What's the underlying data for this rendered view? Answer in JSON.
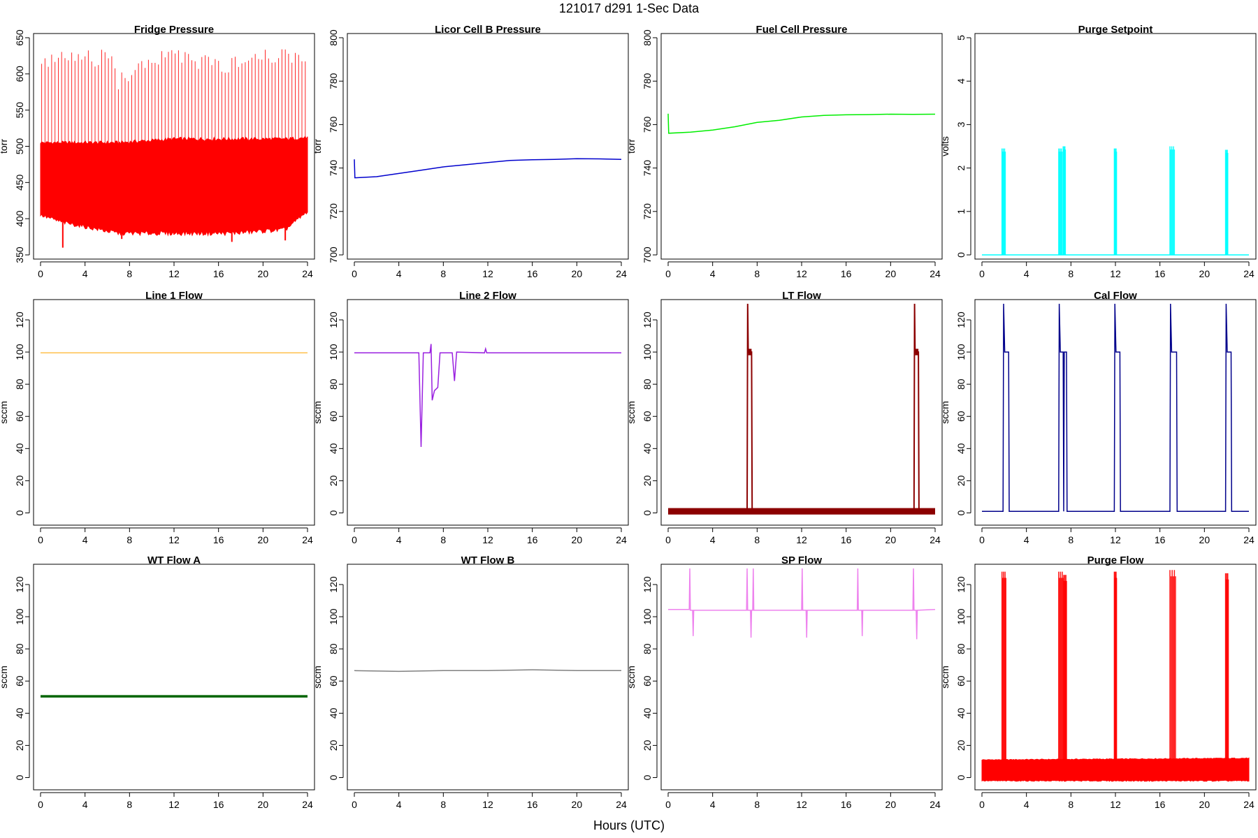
{
  "figure": {
    "suptitle": "121017   d291   1-Sec Data",
    "xlabel": "Hours (UTC)"
  },
  "chart_data": [
    {
      "type": "line",
      "title": "Fridge Pressure",
      "ylabel": "torr",
      "color": "#ff0000",
      "xlim": [
        0,
        24
      ],
      "ylim": [
        350,
        650
      ],
      "xticks": [
        0,
        4,
        8,
        12,
        16,
        20,
        24
      ],
      "yticks": [
        350,
        400,
        450,
        500,
        550,
        600,
        650
      ],
      "band": [
        [
          0,
          405,
          505
        ],
        [
          2,
          395,
          505
        ],
        [
          7,
          380,
          505
        ],
        [
          12,
          380,
          510
        ],
        [
          17,
          380,
          510
        ],
        [
          22,
          385,
          510
        ],
        [
          24,
          410,
          512
        ]
      ],
      "spikes": {
        "start": 0.1,
        "end": 24,
        "step": 0.3,
        "from": 505,
        "tops": [
          [
            0,
            630
          ],
          [
            6.6,
            635
          ],
          [
            7,
            600
          ],
          [
            8,
            610
          ],
          [
            12,
            640
          ],
          [
            17,
            620
          ],
          [
            18,
            635
          ],
          [
            24,
            640
          ]
        ]
      },
      "dips": [
        [
          2,
          360
        ],
        [
          7.3,
          372
        ],
        [
          12,
          378
        ],
        [
          17.2,
          368
        ],
        [
          22,
          370
        ]
      ]
    },
    {
      "type": "line",
      "title": "Licor Cell B Pressure",
      "ylabel": "torr",
      "color": "#0000cd",
      "xlim": [
        0,
        24
      ],
      "ylim": [
        700,
        800
      ],
      "xticks": [
        0,
        4,
        8,
        12,
        16,
        20,
        24
      ],
      "yticks": [
        700,
        720,
        740,
        760,
        780,
        800
      ],
      "series": [
        [
          0,
          744
        ],
        [
          0.05,
          735.5
        ],
        [
          2,
          736
        ],
        [
          4,
          737.5
        ],
        [
          6,
          739
        ],
        [
          8,
          740.5
        ],
        [
          10,
          741.5
        ],
        [
          12,
          742.5
        ],
        [
          14,
          743.5
        ],
        [
          16,
          743.8
        ],
        [
          18,
          744
        ],
        [
          20,
          744.3
        ],
        [
          22,
          744.2
        ],
        [
          24,
          744
        ]
      ]
    },
    {
      "type": "line",
      "title": "Fuel Cell Pressure",
      "ylabel": "torr",
      "color": "#00ee00",
      "xlim": [
        0,
        24
      ],
      "ylim": [
        700,
        800
      ],
      "xticks": [
        0,
        4,
        8,
        12,
        16,
        20,
        24
      ],
      "yticks": [
        700,
        720,
        740,
        760,
        780,
        800
      ],
      "series": [
        [
          0,
          765
        ],
        [
          0.05,
          756
        ],
        [
          2,
          756.5
        ],
        [
          4,
          757.5
        ],
        [
          6,
          759
        ],
        [
          8,
          761
        ],
        [
          10,
          762
        ],
        [
          12,
          763.5
        ],
        [
          14,
          764.2
        ],
        [
          16,
          764.5
        ],
        [
          18,
          764.6
        ],
        [
          20,
          764.8
        ],
        [
          22,
          764.7
        ],
        [
          24,
          764.8
        ]
      ]
    },
    {
      "type": "line",
      "title": "Purge Setpoint",
      "ylabel": "volts",
      "color": "#00ffff",
      "xlim": [
        0,
        24
      ],
      "ylim": [
        0,
        5
      ],
      "xticks": [
        0,
        4,
        8,
        12,
        16,
        20,
        24
      ],
      "yticks": [
        0,
        1,
        2,
        3,
        4,
        5
      ],
      "baseline": 0,
      "pulses": [
        [
          1.8,
          2.1,
          2.45
        ],
        [
          6.9,
          7.2,
          2.45
        ],
        [
          7.3,
          7.5,
          2.5
        ],
        [
          11.9,
          12.1,
          2.45
        ],
        [
          16.9,
          17.3,
          2.5
        ],
        [
          21.9,
          22.1,
          2.42
        ]
      ]
    },
    {
      "type": "line",
      "title": "Line 1 Flow",
      "ylabel": "sccm",
      "color": "#ffc04c",
      "xlim": [
        0,
        24
      ],
      "ylim": [
        -5,
        130
      ],
      "xticks": [
        0,
        4,
        8,
        12,
        16,
        20,
        24
      ],
      "yticks": [
        0,
        20,
        40,
        60,
        80,
        100,
        120
      ],
      "series": [
        [
          0,
          99.5
        ],
        [
          24,
          99.5
        ]
      ]
    },
    {
      "type": "line",
      "title": "Line 2 Flow",
      "ylabel": "sccm",
      "color": "#9a20e0",
      "xlim": [
        0,
        24
      ],
      "ylim": [
        -5,
        130
      ],
      "xticks": [
        0,
        4,
        8,
        12,
        16,
        20,
        24
      ],
      "yticks": [
        0,
        20,
        40,
        60,
        80,
        100,
        120
      ],
      "series": [
        [
          0,
          99.5
        ],
        [
          5.8,
          99.5
        ],
        [
          6,
          41
        ],
        [
          6.2,
          99.5
        ],
        [
          6.8,
          99.5
        ],
        [
          6.9,
          105
        ],
        [
          7,
          70
        ],
        [
          7.2,
          76
        ],
        [
          7.5,
          78
        ],
        [
          7.7,
          99.5
        ],
        [
          8.8,
          99.5
        ],
        [
          9,
          82
        ],
        [
          9.2,
          100
        ],
        [
          11.7,
          99.5
        ],
        [
          11.8,
          102
        ],
        [
          11.9,
          99.5
        ],
        [
          24,
          99.5
        ]
      ]
    },
    {
      "type": "line",
      "title": "LT Flow",
      "ylabel": "sccm",
      "color": "#8b0000",
      "xlim": [
        0,
        24
      ],
      "ylim": [
        -5,
        130
      ],
      "xticks": [
        0,
        4,
        8,
        12,
        16,
        20,
        24
      ],
      "yticks": [
        0,
        20,
        40,
        60,
        80,
        100,
        120
      ],
      "series": [
        [
          0,
          1
        ],
        [
          7.1,
          1
        ],
        [
          7.15,
          130
        ],
        [
          7.2,
          100
        ],
        [
          7.5,
          100
        ],
        [
          7.55,
          1
        ],
        [
          22.1,
          1
        ],
        [
          22.15,
          130
        ],
        [
          22.2,
          100
        ],
        [
          22.5,
          100
        ],
        [
          22.55,
          1
        ],
        [
          24,
          1
        ]
      ]
    },
    {
      "type": "line",
      "title": "Cal Flow",
      "ylabel": "sccm",
      "color": "#00008b",
      "xlim": [
        0,
        24
      ],
      "ylim": [
        -5,
        130
      ],
      "xticks": [
        0,
        4,
        8,
        12,
        16,
        20,
        24
      ],
      "yticks": [
        0,
        20,
        40,
        60,
        80,
        100,
        120
      ],
      "series": [
        [
          0,
          1
        ],
        [
          1.9,
          1
        ],
        [
          1.95,
          130
        ],
        [
          2.05,
          100
        ],
        [
          2.4,
          100
        ],
        [
          2.45,
          1
        ],
        [
          6.9,
          1
        ],
        [
          6.95,
          130
        ],
        [
          7.05,
          100
        ],
        [
          7.3,
          100
        ],
        [
          7.35,
          1
        ],
        [
          7.4,
          100
        ],
        [
          7.6,
          100
        ],
        [
          7.65,
          1
        ],
        [
          11.9,
          1
        ],
        [
          11.95,
          130
        ],
        [
          12.05,
          100
        ],
        [
          12.4,
          100
        ],
        [
          12.45,
          1
        ],
        [
          16.9,
          1
        ],
        [
          16.95,
          130
        ],
        [
          17.05,
          100
        ],
        [
          17.5,
          100
        ],
        [
          17.55,
          1
        ],
        [
          21.9,
          1
        ],
        [
          21.95,
          130
        ],
        [
          22.05,
          100
        ],
        [
          22.4,
          100
        ],
        [
          22.45,
          1
        ],
        [
          24,
          1
        ]
      ]
    },
    {
      "type": "line",
      "title": "WT Flow A",
      "ylabel": "sccm",
      "color": "#006400",
      "xlim": [
        0,
        24
      ],
      "ylim": [
        -5,
        130
      ],
      "xticks": [
        0,
        4,
        8,
        12,
        16,
        20,
        24
      ],
      "yticks": [
        0,
        20,
        40,
        60,
        80,
        100,
        120
      ],
      "series": [
        [
          0,
          50.5
        ],
        [
          24,
          50.5
        ]
      ]
    },
    {
      "type": "line",
      "title": "WT Flow B",
      "ylabel": "sccm",
      "color": "#808080",
      "xlim": [
        0,
        24
      ],
      "ylim": [
        -5,
        130
      ],
      "xticks": [
        0,
        4,
        8,
        12,
        16,
        20,
        24
      ],
      "yticks": [
        0,
        20,
        40,
        60,
        80,
        100,
        120
      ],
      "series": [
        [
          0,
          66.5
        ],
        [
          4,
          66
        ],
        [
          8,
          66.5
        ],
        [
          12,
          66.5
        ],
        [
          16,
          67
        ],
        [
          20,
          66.5
        ],
        [
          24,
          66.5
        ]
      ]
    },
    {
      "type": "line",
      "title": "SP Flow",
      "ylabel": "sccm",
      "color": "#ee82ee",
      "xlim": [
        0,
        24
      ],
      "ylim": [
        -5,
        130
      ],
      "xticks": [
        0,
        4,
        8,
        12,
        16,
        20,
        24
      ],
      "yticks": [
        0,
        20,
        40,
        60,
        80,
        100,
        120
      ],
      "series": [
        [
          0,
          104.5
        ],
        [
          1.9,
          104.5
        ],
        [
          1.95,
          130
        ],
        [
          2.0,
          104
        ],
        [
          2.2,
          104
        ],
        [
          2.25,
          88
        ],
        [
          2.3,
          104
        ],
        [
          7.05,
          104
        ],
        [
          7.1,
          130
        ],
        [
          7.15,
          104
        ],
        [
          7.4,
          104
        ],
        [
          7.45,
          87
        ],
        [
          7.5,
          104
        ],
        [
          7.6,
          104
        ],
        [
          7.65,
          130
        ],
        [
          7.7,
          104
        ],
        [
          12,
          104
        ],
        [
          12.05,
          130
        ],
        [
          12.1,
          104
        ],
        [
          12.4,
          104
        ],
        [
          12.45,
          87
        ],
        [
          12.5,
          104
        ],
        [
          17,
          104
        ],
        [
          17.05,
          130
        ],
        [
          17.1,
          104
        ],
        [
          17.4,
          104
        ],
        [
          17.45,
          88
        ],
        [
          17.5,
          104
        ],
        [
          22,
          104
        ],
        [
          22.05,
          130
        ],
        [
          22.1,
          104
        ],
        [
          22.3,
          104
        ],
        [
          22.35,
          86
        ],
        [
          22.4,
          104
        ],
        [
          24,
          104.5
        ]
      ]
    },
    {
      "type": "line",
      "title": "Purge Flow",
      "ylabel": "sccm",
      "color": "#ff0000",
      "xlim": [
        0,
        24
      ],
      "ylim": [
        -5,
        130
      ],
      "xticks": [
        0,
        4,
        8,
        12,
        16,
        20,
        24
      ],
      "yticks": [
        0,
        20,
        40,
        60,
        80,
        100,
        120
      ],
      "band": [
        [
          0,
          -2,
          11
        ],
        [
          24,
          -2,
          12
        ]
      ],
      "pulses": [
        [
          1.8,
          2.15,
          128
        ],
        [
          6.9,
          7.3,
          128
        ],
        [
          7.35,
          7.6,
          126
        ],
        [
          11.9,
          12.1,
          128
        ],
        [
          16.9,
          17.4,
          129
        ],
        [
          21.9,
          22.15,
          127
        ]
      ]
    }
  ]
}
